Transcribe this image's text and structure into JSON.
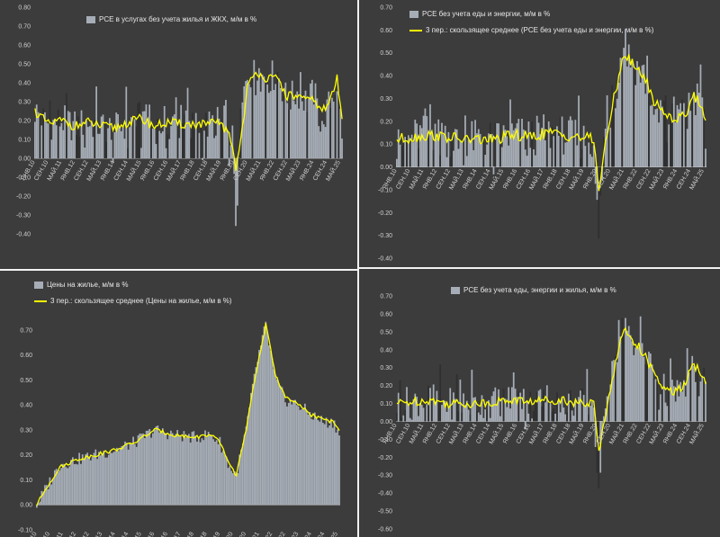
{
  "colors": {
    "bar": "#a6adb6",
    "line": "#ffff00",
    "axis": "#d0d0d0",
    "background": "#3c3c3c"
  },
  "charts": [
    {
      "type": "bar",
      "legend": {
        "bar": "PCE в услугах без учета жилья и ЖКХ, м/м в %",
        "line": ""
      },
      "ylim": [
        -0.4,
        0.8
      ],
      "yticks": [
        "-0.40",
        "-0.30",
        "-0.20",
        "-0.10",
        "0.00",
        "0.10",
        "0.20",
        "0.30",
        "0.40",
        "0.50",
        "0.60",
        "0.70",
        "0.80"
      ],
      "xticks": [
        "ЯНВ.10",
        "СЕН.10",
        "МАЙ.11",
        "ЯНВ.12",
        "СЕН.12",
        "МАЙ.13",
        "ЯНВ.14",
        "СЕН.14",
        "МАЙ.15",
        "ЯНВ.16",
        "СЕН.16",
        "МАЙ.17",
        "ЯНВ.18",
        "СЕН.18",
        "МАЙ.19",
        "ЯНВ.20",
        "СЕН.20",
        "МАЙ.21",
        "ЯНВ.22",
        "СЕН.22",
        "МАЙ.23",
        "ЯНВ.24",
        "СЕН.24",
        "МАЙ.25"
      ]
    },
    {
      "type": "bar",
      "legend": {
        "bar": "PCE без учета еды и энергии, м/м в %",
        "line": "3 пер.: скользящее среднее (PCE без учета еды и энергии, м/м в %)"
      },
      "ylim": [
        -0.4,
        0.7
      ],
      "yticks": [
        "-0.40",
        "-0.30",
        "-0.20",
        "-0.10",
        "0.00",
        "0.10",
        "0.20",
        "0.30",
        "0.40",
        "0.50",
        "0.60",
        "0.70"
      ],
      "xticks": [
        "ЯНВ.10",
        "СЕН.10",
        "МАЙ.11",
        "ЯНВ.12",
        "СЕН.12",
        "МАЙ.13",
        "ЯНВ.14",
        "СЕН.14",
        "МАЙ.15",
        "ЯНВ.16",
        "СЕН.16",
        "МАЙ.17",
        "ЯНВ.18",
        "СЕН.18",
        "МАЙ.19",
        "ЯНВ.20",
        "СЕН.20",
        "МАЙ.21",
        "ЯНВ.22",
        "СЕН.22",
        "МАЙ.23",
        "ЯНВ.24",
        "СЕН.24",
        "МАЙ.25"
      ]
    },
    {
      "type": "bar",
      "legend": {
        "bar": "Цены на жилье, м/м в %",
        "line": "3 пер.: скользящее среднее (Цены на жилье, м/м в %)"
      },
      "ylim": [
        -0.1,
        0.8
      ],
      "yticks": [
        "-0.10",
        "0.00",
        "0.10",
        "0.20",
        "0.30",
        "0.40",
        "0.50",
        "0.60",
        "0.70"
      ],
      "xticks": [
        "ЯНВ.10",
        "СЕН.10",
        "МАЙ.11",
        "ЯНВ.12",
        "СЕН.12",
        "МАЙ.13",
        "ЯНВ.14",
        "СЕН.14",
        "МАЙ.15",
        "ЯНВ.16",
        "СЕН.16",
        "МАЙ.17",
        "ЯНВ.18",
        "СЕН.18",
        "МАЙ.19",
        "ЯНВ.20",
        "СЕН.20",
        "МАЙ.21",
        "ЯНВ.22",
        "СЕН.22",
        "МАЙ.23",
        "ЯНВ.24",
        "СЕН.24",
        "МАЙ.25"
      ]
    },
    {
      "type": "bar",
      "legend": {
        "bar": "PCE без учета еды, энергии и жилья, м/м в %",
        "line": ""
      },
      "ylim": [
        -0.6,
        0.7
      ],
      "yticks": [
        "-0.60",
        "-0.50",
        "-0.40",
        "-0.30",
        "-0.20",
        "-0.10",
        "0.00",
        "0.10",
        "0.20",
        "0.30",
        "0.40",
        "0.50",
        "0.60",
        "0.70"
      ],
      "xticks": [
        "ЯНВ.10",
        "СЕН.10",
        "МАЙ.11",
        "ЯНВ.12",
        "СЕН.12",
        "МАЙ.13",
        "ЯНВ.14",
        "СЕН.14",
        "МАЙ.15",
        "ЯНВ.16",
        "СЕН.16",
        "МАЙ.17",
        "ЯНВ.18",
        "СЕН.18",
        "МАЙ.19",
        "ЯНВ.20",
        "СЕН.20",
        "МАЙ.21",
        "ЯНВ.22",
        "СЕН.22",
        "МАЙ.23",
        "ЯНВ.24",
        "СЕН.24",
        "МАЙ.25"
      ]
    }
  ],
  "chart_data": [
    {
      "type": "bar",
      "title": "",
      "series": [
        {
          "name": "PCE в услугах без учета жилья и ЖКХ, м/м в %",
          "kind": "bar",
          "anchors": [
            [
              0,
              0.25
            ],
            [
              8,
              0.18
            ],
            [
              16,
              0.2
            ],
            [
              24,
              0.17
            ],
            [
              32,
              0.19
            ],
            [
              40,
              0.17
            ],
            [
              48,
              0.15
            ],
            [
              56,
              0.19
            ],
            [
              64,
              0.22
            ],
            [
              72,
              0.16
            ],
            [
              80,
              0.2
            ],
            [
              88,
              0.17
            ],
            [
              96,
              0.18
            ],
            [
              104,
              0.17
            ],
            [
              112,
              0.2
            ],
            [
              120,
              -0.05
            ],
            [
              122,
              -0.34
            ],
            [
              124,
              0.22
            ],
            [
              128,
              0.45
            ],
            [
              134,
              0.45
            ],
            [
              140,
              0.42
            ],
            [
              146,
              0.45
            ],
            [
              152,
              0.3
            ],
            [
              158,
              0.35
            ],
            [
              164,
              0.3
            ],
            [
              168,
              0.35
            ],
            [
              172,
              0.2
            ],
            [
              176,
              0.25
            ],
            [
              182,
              0.4
            ],
            [
              185,
              0.15
            ]
          ]
        },
        {
          "name": "3 пер.: скользящее среднее",
          "kind": "line",
          "anchors": [
            [
              0,
              0.25
            ],
            [
              8,
              0.18
            ],
            [
              16,
              0.2
            ],
            [
              24,
              0.17
            ],
            [
              32,
              0.19
            ],
            [
              40,
              0.17
            ],
            [
              48,
              0.16
            ],
            [
              56,
              0.19
            ],
            [
              64,
              0.21
            ],
            [
              72,
              0.17
            ],
            [
              80,
              0.19
            ],
            [
              88,
              0.18
            ],
            [
              96,
              0.18
            ],
            [
              104,
              0.18
            ],
            [
              112,
              0.19
            ],
            [
              118,
              0.1
            ],
            [
              121,
              -0.05
            ],
            [
              124,
              0.1
            ],
            [
              128,
              0.38
            ],
            [
              134,
              0.46
            ],
            [
              140,
              0.42
            ],
            [
              146,
              0.42
            ],
            [
              152,
              0.33
            ],
            [
              158,
              0.33
            ],
            [
              164,
              0.3
            ],
            [
              168,
              0.32
            ],
            [
              172,
              0.25
            ],
            [
              176,
              0.27
            ],
            [
              182,
              0.42
            ],
            [
              185,
              0.2
            ]
          ]
        }
      ]
    },
    {
      "type": "bar",
      "title": "",
      "series": [
        {
          "name": "PCE без учета еды и энергии, м/м в %",
          "kind": "bar",
          "anchors": [
            [
              0,
              0.12
            ],
            [
              10,
              0.13
            ],
            [
              20,
              0.15
            ],
            [
              30,
              0.13
            ],
            [
              40,
              0.12
            ],
            [
              50,
              0.12
            ],
            [
              60,
              0.12
            ],
            [
              70,
              0.14
            ],
            [
              80,
              0.13
            ],
            [
              90,
              0.15
            ],
            [
              100,
              0.14
            ],
            [
              110,
              0.12
            ],
            [
              118,
              0.12
            ],
            [
              121,
              -0.32
            ],
            [
              124,
              0.12
            ],
            [
              130,
              0.3
            ],
            [
              136,
              0.52
            ],
            [
              142,
              0.45
            ],
            [
              148,
              0.4
            ],
            [
              154,
              0.28
            ],
            [
              160,
              0.25
            ],
            [
              166,
              0.2
            ],
            [
              172,
              0.23
            ],
            [
              178,
              0.3
            ],
            [
              185,
              0.2
            ]
          ]
        },
        {
          "name": "3 пер.: скользящее среднее (PCE без учета еды и энергии, м/м в %)",
          "kind": "line",
          "anchors": [
            [
              0,
              0.12
            ],
            [
              10,
              0.13
            ],
            [
              20,
              0.14
            ],
            [
              30,
              0.13
            ],
            [
              40,
              0.12
            ],
            [
              50,
              0.12
            ],
            [
              60,
              0.12
            ],
            [
              70,
              0.14
            ],
            [
              80,
              0.13
            ],
            [
              90,
              0.15
            ],
            [
              100,
              0.14
            ],
            [
              110,
              0.13
            ],
            [
              118,
              0.12
            ],
            [
              121,
              -0.1
            ],
            [
              124,
              0.05
            ],
            [
              130,
              0.3
            ],
            [
              136,
              0.5
            ],
            [
              142,
              0.44
            ],
            [
              148,
              0.4
            ],
            [
              154,
              0.29
            ],
            [
              160,
              0.24
            ],
            [
              166,
              0.21
            ],
            [
              172,
              0.22
            ],
            [
              178,
              0.32
            ],
            [
              185,
              0.22
            ]
          ]
        }
      ]
    },
    {
      "type": "bar",
      "title": "",
      "series": [
        {
          "name": "Цены на жилье, м/м в %",
          "kind": "bar",
          "anchors": [
            [
              0,
              0.0
            ],
            [
              6,
              0.07
            ],
            [
              14,
              0.16
            ],
            [
              24,
              0.18
            ],
            [
              36,
              0.2
            ],
            [
              48,
              0.22
            ],
            [
              60,
              0.25
            ],
            [
              72,
              0.3
            ],
            [
              84,
              0.28
            ],
            [
              96,
              0.27
            ],
            [
              106,
              0.28
            ],
            [
              112,
              0.25
            ],
            [
              118,
              0.15
            ],
            [
              122,
              0.12
            ],
            [
              128,
              0.3
            ],
            [
              134,
              0.55
            ],
            [
              140,
              0.72
            ],
            [
              146,
              0.5
            ],
            [
              152,
              0.42
            ],
            [
              160,
              0.4
            ],
            [
              168,
              0.36
            ],
            [
              176,
              0.33
            ],
            [
              182,
              0.33
            ],
            [
              185,
              0.28
            ]
          ]
        },
        {
          "name": "3 пер.: скользящее среднее (Цены на жилье, м/м в %)",
          "kind": "line",
          "anchors": [
            [
              0,
              0.0
            ],
            [
              6,
              0.07
            ],
            [
              14,
              0.15
            ],
            [
              24,
              0.18
            ],
            [
              36,
              0.2
            ],
            [
              48,
              0.22
            ],
            [
              60,
              0.25
            ],
            [
              72,
              0.3
            ],
            [
              84,
              0.28
            ],
            [
              96,
              0.27
            ],
            [
              106,
              0.28
            ],
            [
              112,
              0.25
            ],
            [
              118,
              0.16
            ],
            [
              122,
              0.12
            ],
            [
              128,
              0.3
            ],
            [
              134,
              0.53
            ],
            [
              140,
              0.72
            ],
            [
              146,
              0.52
            ],
            [
              152,
              0.43
            ],
            [
              160,
              0.4
            ],
            [
              168,
              0.36
            ],
            [
              176,
              0.34
            ],
            [
              182,
              0.33
            ],
            [
              185,
              0.3
            ]
          ]
        }
      ]
    },
    {
      "type": "bar",
      "title": "",
      "series": [
        {
          "name": "PCE без учета еды, энергии и жилья, м/м в %",
          "kind": "bar",
          "anchors": [
            [
              0,
              0.1
            ],
            [
              10,
              0.11
            ],
            [
              20,
              0.13
            ],
            [
              30,
              0.1
            ],
            [
              40,
              0.1
            ],
            [
              50,
              0.1
            ],
            [
              60,
              0.11
            ],
            [
              70,
              0.13
            ],
            [
              80,
              0.1
            ],
            [
              90,
              0.13
            ],
            [
              100,
              0.12
            ],
            [
              110,
              0.1
            ],
            [
              118,
              0.1
            ],
            [
              121,
              -0.45
            ],
            [
              124,
              0.1
            ],
            [
              130,
              0.3
            ],
            [
              136,
              0.55
            ],
            [
              142,
              0.45
            ],
            [
              148,
              0.38
            ],
            [
              154,
              0.25
            ],
            [
              160,
              0.18
            ],
            [
              166,
              0.15
            ],
            [
              172,
              0.2
            ],
            [
              178,
              0.3
            ],
            [
              185,
              0.2
            ]
          ]
        },
        {
          "name": "3 пер.: скользящее среднее",
          "kind": "line",
          "anchors": [
            [
              0,
              0.1
            ],
            [
              10,
              0.11
            ],
            [
              20,
              0.12
            ],
            [
              30,
              0.1
            ],
            [
              40,
              0.1
            ],
            [
              50,
              0.1
            ],
            [
              60,
              0.11
            ],
            [
              70,
              0.12
            ],
            [
              80,
              0.11
            ],
            [
              90,
              0.12
            ],
            [
              100,
              0.12
            ],
            [
              110,
              0.1
            ],
            [
              118,
              0.1
            ],
            [
              121,
              -0.18
            ],
            [
              124,
              0.0
            ],
            [
              130,
              0.28
            ],
            [
              136,
              0.52
            ],
            [
              142,
              0.45
            ],
            [
              148,
              0.38
            ],
            [
              154,
              0.26
            ],
            [
              160,
              0.18
            ],
            [
              166,
              0.16
            ],
            [
              172,
              0.2
            ],
            [
              178,
              0.32
            ],
            [
              185,
              0.22
            ]
          ]
        }
      ]
    }
  ]
}
